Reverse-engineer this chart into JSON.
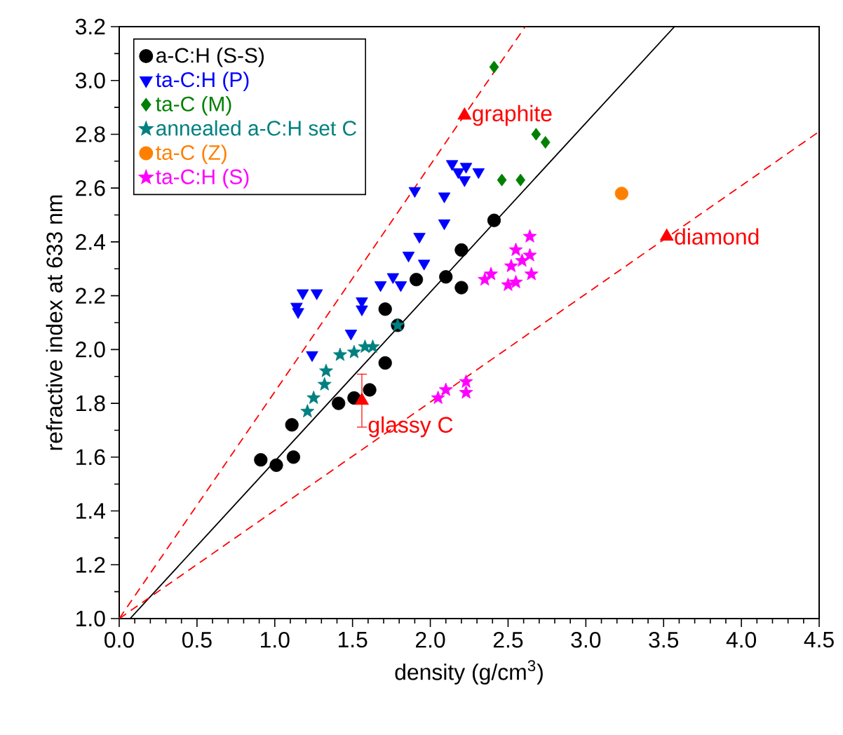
{
  "chart_data": {
    "type": "scatter",
    "xlabel": "density (g/cm$^{3}$)",
    "ylabel": "refractive index at 633 nm",
    "xlim": [
      0,
      4.5
    ],
    "ylim": [
      1.0,
      3.2
    ],
    "xticks": [
      {
        "value": 0,
        "label": "0.0"
      },
      {
        "value": 0.5,
        "label": "0.5"
      },
      {
        "value": 1.0,
        "label": "1.0"
      },
      {
        "value": 1.5,
        "label": "1.5"
      },
      {
        "value": 2.0,
        "label": "2.0"
      },
      {
        "value": 2.5,
        "label": "2.5"
      },
      {
        "value": 3.0,
        "label": "3.0"
      },
      {
        "value": 3.5,
        "label": "3.5"
      },
      {
        "value": 4.0,
        "label": "4.0"
      },
      {
        "value": 4.5,
        "label": "4.5"
      }
    ],
    "yticks": [
      {
        "value": 1.0,
        "label": "1.0"
      },
      {
        "value": 1.2,
        "label": "1.2"
      },
      {
        "value": 1.4,
        "label": "1.4"
      },
      {
        "value": 1.6,
        "label": "1.6"
      },
      {
        "value": 1.8,
        "label": "1.8"
      },
      {
        "value": 2.0,
        "label": "2.0"
      },
      {
        "value": 2.2,
        "label": "2.2"
      },
      {
        "value": 2.4,
        "label": "2.4"
      },
      {
        "value": 2.6,
        "label": "2.6"
      },
      {
        "value": 2.8,
        "label": "2.8"
      },
      {
        "value": 3.0,
        "label": "3.0"
      },
      {
        "value": 3.2,
        "label": "3.2"
      }
    ],
    "legend": "top left",
    "series": [
      {
        "type": "line",
        "color": "#000000",
        "line_style": "solid",
        "marker": "none",
        "x": [
          0.07,
          3.57
        ],
        "values": [
          1.0,
          3.2
        ]
      },
      {
        "type": "line",
        "color": "#ff0000",
        "line_style": "dashed",
        "marker": "none",
        "x": [
          0,
          2.61
        ],
        "values": [
          1.0,
          3.2
        ]
      },
      {
        "type": "line",
        "color": "#ff0000",
        "line_style": "dashed",
        "marker": "none",
        "x": [
          0,
          4.5
        ],
        "values": [
          1.0,
          2.81
        ]
      },
      {
        "name": "a-C:H (S-S)",
        "color": "#000000",
        "marker": "circle",
        "x": [
          0.91,
          1.01,
          1.12,
          1.11,
          1.41,
          1.51,
          1.61,
          1.71,
          1.71,
          1.91,
          2.1,
          2.2,
          2.2,
          2.41,
          1.79
        ],
        "values": [
          1.59,
          1.57,
          1.6,
          1.72,
          1.8,
          1.82,
          1.85,
          1.95,
          2.15,
          2.26,
          2.27,
          2.37,
          2.23,
          2.48,
          2.09
        ]
      },
      {
        "name": "ta-C:H (P)",
        "color": "#0000ff",
        "marker": "triangle_down",
        "x": [
          1.15,
          1.18,
          1.27,
          1.14,
          1.24,
          1.49,
          1.56,
          1.56,
          1.68,
          1.76,
          1.81,
          1.86,
          1.96,
          1.93,
          2.09,
          2.09,
          1.9,
          2.14,
          2.23,
          2.22,
          2.31,
          2.18
        ],
        "values": [
          2.14,
          2.21,
          2.21,
          2.16,
          1.98,
          2.06,
          2.18,
          2.15,
          2.24,
          2.27,
          2.24,
          2.35,
          2.32,
          2.42,
          2.47,
          2.57,
          2.59,
          2.69,
          2.68,
          2.63,
          2.66,
          2.66
        ]
      },
      {
        "name": "ta-C (M)",
        "color": "#008000",
        "marker": "diamond",
        "x": [
          2.41,
          2.68,
          2.74,
          2.46,
          2.58
        ],
        "values": [
          3.05,
          2.8,
          2.77,
          2.63,
          2.63
        ]
      },
      {
        "name": "annealed a-C:H set C",
        "color": "#008080",
        "marker": "star",
        "x": [
          1.21,
          1.25,
          1.32,
          1.33,
          1.42,
          1.51,
          1.58,
          1.63,
          1.79
        ],
        "values": [
          1.77,
          1.82,
          1.87,
          1.92,
          1.98,
          1.99,
          2.01,
          2.01,
          2.09
        ]
      },
      {
        "name": "ta-C (Z)",
        "color": "#ff8000",
        "marker": "circle",
        "x": [
          3.23
        ],
        "values": [
          2.58
        ]
      },
      {
        "name": "ta-C:H (S)",
        "color": "#ff00ff",
        "marker": "star",
        "x": [
          2.64,
          2.55,
          2.64,
          2.52,
          2.59,
          2.39,
          2.35,
          2.5,
          2.55,
          2.65,
          2.05,
          2.1,
          2.23,
          2.23
        ],
        "values": [
          2.42,
          2.37,
          2.35,
          2.31,
          2.33,
          2.28,
          2.26,
          2.24,
          2.25,
          2.28,
          1.82,
          1.85,
          1.88,
          1.84
        ]
      },
      {
        "color": "#ff0000",
        "marker": "triangle",
        "x": [
          2.22,
          3.52,
          1.56
        ],
        "values": [
          2.87,
          2.42,
          1.81
        ],
        "errors": [
          null,
          null,
          0.1
        ]
      }
    ],
    "annotations": [
      {
        "text": "graphite",
        "x": 2.22,
        "y": 2.87
      },
      {
        "text": "diamond",
        "x": 3.52,
        "y": 2.42
      },
      {
        "text": "glassy C",
        "x": 1.56,
        "y": 1.81
      }
    ]
  }
}
